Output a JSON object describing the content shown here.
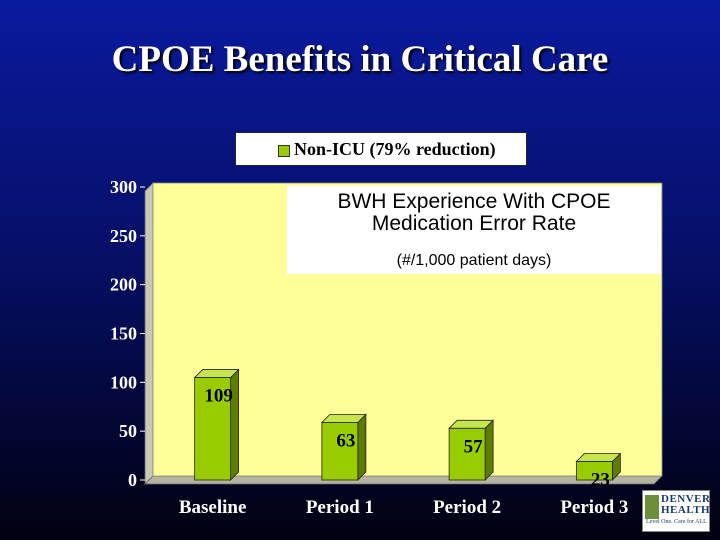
{
  "slide": {
    "title": "CPOE Benefits in Critical Care"
  },
  "colors": {
    "bar": "#99cc00",
    "plot_bg": "#ffff99",
    "background": "#06106a"
  },
  "chart_data": {
    "type": "bar",
    "categories": [
      "Baseline",
      "Period 1",
      "Period 2",
      "Period 3"
    ],
    "series": [
      {
        "name": "Non-ICU (79% reduction)",
        "values": [
          109,
          63,
          57,
          23
        ]
      }
    ],
    "yticks": [
      0,
      50,
      100,
      150,
      200,
      250,
      300
    ],
    "ylim": [
      0,
      300
    ],
    "grid": false,
    "legend_position": "top",
    "inset_text": {
      "line1": "BWH Experience With CPOE",
      "line2": "Medication Error Rate",
      "line3": "(#/1,000 patient days)"
    }
  },
  "logo": {
    "line1": "DENVER",
    "line2": "HEALTH",
    "line3": "Level One. Care for ALL"
  }
}
